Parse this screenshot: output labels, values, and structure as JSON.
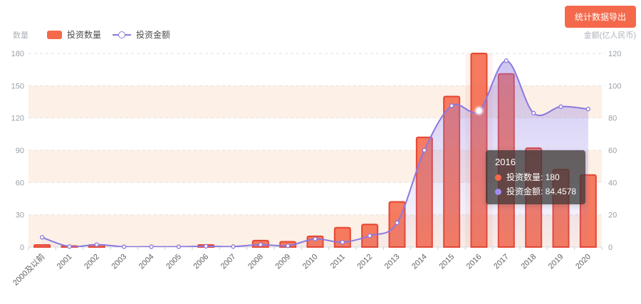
{
  "header": {
    "export_button_label": "统计数据导出"
  },
  "legend": {
    "items": [
      {
        "label": "投资数量",
        "type": "bar",
        "color": "#f4694b"
      },
      {
        "label": "投资金额",
        "type": "line",
        "color": "#8b78e0"
      }
    ]
  },
  "tooltip": {
    "title": "2016",
    "rows": [
      {
        "text": "投资数量: 180",
        "color": "#f4694b"
      },
      {
        "text": "投资金额: 84.4578",
        "color": "#a18bf2"
      }
    ]
  },
  "chart_data": {
    "type": "bar",
    "categories": [
      "2000及以前",
      "2001",
      "2002",
      "2003",
      "2004",
      "2005",
      "2006",
      "2007",
      "2008",
      "2009",
      "2010",
      "2011",
      "2012",
      "2013",
      "2014",
      "2015",
      "2016",
      "2017",
      "2018",
      "2019",
      "2020"
    ],
    "series": [
      {
        "name": "投资数量",
        "type": "bar",
        "axis": "left",
        "color": "#f4694b",
        "border_color": "#e5402c",
        "values": [
          2,
          1,
          2,
          0,
          0,
          0,
          2,
          0,
          6,
          5,
          10,
          18,
          21,
          42,
          102,
          140,
          180,
          161,
          92,
          72,
          67
        ]
      },
      {
        "name": "投资金额",
        "type": "line",
        "axis": "right",
        "color": "#8b78e0",
        "values": [
          6,
          0.3,
          1.5,
          0.2,
          0.2,
          0.2,
          0.5,
          0.3,
          1.5,
          0.8,
          5,
          3,
          7,
          15,
          60,
          87.6,
          84.4578,
          115.5,
          83,
          87,
          85.5
        ]
      }
    ],
    "y_left": {
      "name": "数量",
      "min": 0,
      "max": 180,
      "ticks": [
        0,
        30,
        60,
        90,
        120,
        150,
        180
      ]
    },
    "y_right": {
      "name": "金额(亿人民币)",
      "min": 0,
      "max": 120,
      "ticks": [
        0,
        20,
        40,
        60,
        80,
        100,
        120
      ]
    },
    "highlighted_category": "2016",
    "highlighted_index": 16,
    "legend_position": "top-left",
    "grid": true,
    "colors": {
      "band": "#fdf0e6",
      "hover_band": "rgba(245,110,80,0.09)",
      "gridline": "#e2e2e6",
      "axis_line": "#d9dbe0",
      "tick": "#cccccc",
      "x_label": "#606266",
      "y_label": "#9aa0a6",
      "area_top": "rgba(139,120,226,0.42)",
      "area_bottom": "rgba(139,120,226,0.04)"
    }
  }
}
